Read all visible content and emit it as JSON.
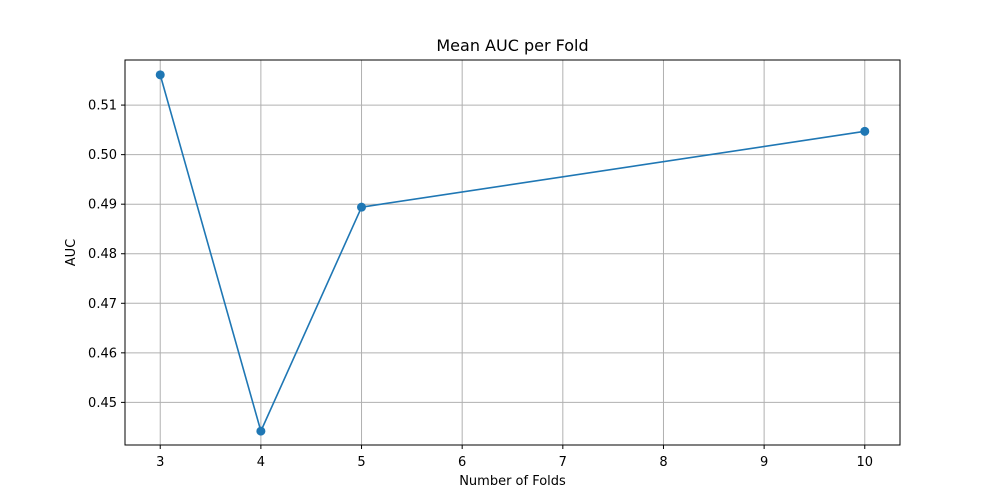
{
  "chart_data": {
    "type": "line",
    "title": "Mean AUC per Fold",
    "xlabel": "Number of Folds",
    "ylabel": "AUC",
    "xlim": [
      2.65,
      10.35
    ],
    "ylim": [
      0.4414,
      0.5191
    ],
    "x_ticks": [
      3,
      4,
      5,
      6,
      7,
      8,
      9,
      10
    ],
    "y_ticks": [
      0.45,
      0.46,
      0.47,
      0.48,
      0.49,
      0.5,
      0.51
    ],
    "y_tick_labels": [
      "0.45",
      "0.46",
      "0.47",
      "0.48",
      "0.49",
      "0.50",
      "0.51"
    ],
    "grid": true,
    "series": [
      {
        "color": "#1f77b4",
        "marker": "circle",
        "x": [
          3,
          4,
          5,
          10
        ],
        "y": [
          0.5161,
          0.4442,
          0.4894,
          0.5047
        ]
      }
    ]
  }
}
